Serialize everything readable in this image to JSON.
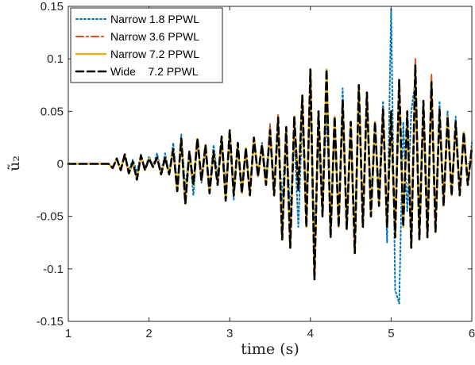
{
  "chart_data": {
    "type": "line",
    "xlabel": "time (s)",
    "ylabel": "ũ₂",
    "xlim": [
      1,
      6
    ],
    "ylim": [
      -0.15,
      0.15
    ],
    "x_ticks": [
      1,
      2,
      3,
      4,
      5,
      6
    ],
    "y_ticks": [
      -0.15,
      -0.1,
      -0.05,
      0,
      0.05,
      0.1,
      0.15
    ],
    "x_tick_labels": [
      "1",
      "2",
      "3",
      "4",
      "5",
      "6"
    ],
    "y_tick_labels": [
      "-0.15",
      "-0.1",
      "-0.05",
      "0",
      "0.05",
      "0.1",
      "0.15"
    ],
    "grid": false,
    "legend_position": "top-left",
    "series": [
      {
        "name": "Narrow 1.8 PPWL",
        "color": "#0072BD",
        "style": "dotted",
        "x": [
          1.0,
          1.5,
          1.55,
          1.6,
          1.65,
          1.7,
          1.75,
          1.8,
          1.85,
          1.9,
          1.95,
          2.0,
          2.05,
          2.1,
          2.15,
          2.2,
          2.25,
          2.3,
          2.35,
          2.4,
          2.45,
          2.5,
          2.55,
          2.6,
          2.65,
          2.7,
          2.75,
          2.8,
          2.85,
          2.9,
          2.95,
          3.0,
          3.05,
          3.1,
          3.15,
          3.2,
          3.25,
          3.3,
          3.35,
          3.4,
          3.45,
          3.5,
          3.55,
          3.6,
          3.65,
          3.7,
          3.75,
          3.8,
          3.85,
          3.9,
          3.95,
          4.0,
          4.05,
          4.1,
          4.15,
          4.2,
          4.25,
          4.3,
          4.35,
          4.4,
          4.45,
          4.5,
          4.55,
          4.6,
          4.65,
          4.7,
          4.75,
          4.8,
          4.85,
          4.9,
          4.95,
          5.0,
          5.05,
          5.1,
          5.15,
          5.2,
          5.25,
          5.3,
          5.35,
          5.4,
          5.45,
          5.5,
          5.55,
          5.6,
          5.65,
          5.7,
          5.75,
          5.8,
          5.85,
          5.9,
          5.95,
          6.0
        ],
        "y": [
          0.0,
          0.0,
          -0.003,
          0.004,
          -0.005,
          0.008,
          -0.006,
          0.004,
          -0.008,
          0.009,
          -0.005,
          0.007,
          -0.002,
          0.01,
          -0.008,
          0.01,
          -0.01,
          0.02,
          -0.02,
          0.028,
          -0.024,
          0.012,
          -0.03,
          0.022,
          -0.018,
          0.012,
          -0.022,
          0.018,
          -0.012,
          0.026,
          -0.02,
          0.024,
          -0.034,
          0.018,
          -0.022,
          0.014,
          -0.03,
          0.022,
          -0.01,
          0.02,
          -0.012,
          0.036,
          -0.022,
          0.028,
          -0.035,
          0.032,
          -0.048,
          0.03,
          -0.06,
          0.045,
          -0.03,
          0.06,
          -0.068,
          0.022,
          -0.04,
          0.05,
          -0.06,
          0.03,
          -0.05,
          0.072,
          -0.055,
          0.028,
          -0.065,
          0.07,
          -0.045,
          0.055,
          -0.03,
          0.03,
          -0.025,
          0.06,
          -0.075,
          0.148,
          -0.12,
          -0.133,
          0.04,
          -0.045,
          0.05,
          0.08,
          -0.07,
          0.06,
          -0.05,
          0.07,
          -0.06,
          0.06,
          -0.04,
          0.05,
          -0.03,
          0.045,
          -0.025,
          0.03,
          -0.02,
          0.02
        ]
      },
      {
        "name": "Narrow 3.6 PPWL",
        "color": "#D95319",
        "style": "dashdot",
        "x": [
          1.0,
          1.5,
          1.55,
          1.6,
          1.65,
          1.7,
          1.75,
          1.8,
          1.85,
          1.9,
          1.95,
          2.0,
          2.05,
          2.1,
          2.15,
          2.2,
          2.25,
          2.3,
          2.35,
          2.4,
          2.45,
          2.5,
          2.55,
          2.6,
          2.65,
          2.7,
          2.75,
          2.8,
          2.85,
          2.9,
          2.95,
          3.0,
          3.05,
          3.1,
          3.15,
          3.2,
          3.25,
          3.3,
          3.35,
          3.4,
          3.45,
          3.5,
          3.55,
          3.6,
          3.65,
          3.7,
          3.75,
          3.8,
          3.85,
          3.9,
          3.95,
          4.0,
          4.05,
          4.1,
          4.15,
          4.2,
          4.25,
          4.3,
          4.35,
          4.4,
          4.45,
          4.5,
          4.55,
          4.6,
          4.65,
          4.7,
          4.75,
          4.8,
          4.85,
          4.9,
          4.95,
          5.0,
          5.05,
          5.1,
          5.15,
          5.2,
          5.25,
          5.3,
          5.35,
          5.4,
          5.45,
          5.5,
          5.55,
          5.6,
          5.65,
          5.7,
          5.75,
          5.8,
          5.85,
          5.9,
          5.95,
          6.0
        ],
        "y": [
          0.0,
          0.0,
          -0.004,
          0.005,
          -0.006,
          0.009,
          -0.009,
          0.002,
          -0.014,
          0.008,
          -0.006,
          0.005,
          -0.003,
          0.006,
          -0.01,
          0.006,
          -0.01,
          0.014,
          -0.026,
          0.024,
          -0.034,
          0.012,
          -0.02,
          0.024,
          -0.016,
          0.018,
          -0.028,
          0.012,
          -0.02,
          0.026,
          -0.035,
          0.032,
          -0.03,
          0.02,
          -0.028,
          0.015,
          -0.03,
          0.025,
          -0.012,
          0.018,
          -0.02,
          0.038,
          -0.03,
          0.048,
          -0.072,
          0.035,
          -0.08,
          0.045,
          -0.025,
          0.065,
          -0.06,
          0.088,
          -0.11,
          0.05,
          -0.05,
          0.085,
          -0.07,
          0.045,
          -0.06,
          0.06,
          -0.062,
          0.04,
          -0.085,
          0.075,
          -0.06,
          0.068,
          -0.05,
          0.04,
          -0.04,
          0.052,
          -0.06,
          0.05,
          -0.07,
          0.08,
          -0.06,
          0.05,
          -0.08,
          0.1,
          -0.072,
          0.06,
          -0.07,
          0.085,
          -0.065,
          0.052,
          -0.04,
          0.045,
          -0.03,
          0.04,
          -0.03,
          0.03,
          -0.02,
          0.015
        ]
      },
      {
        "name": "Narrow 7.2 PPWL",
        "color": "#EDB120",
        "style": "solid",
        "x": [
          1.0,
          1.5,
          1.55,
          1.6,
          1.65,
          1.7,
          1.75,
          1.8,
          1.85,
          1.9,
          1.95,
          2.0,
          2.05,
          2.1,
          2.15,
          2.2,
          2.25,
          2.3,
          2.35,
          2.4,
          2.45,
          2.5,
          2.55,
          2.6,
          2.65,
          2.7,
          2.75,
          2.8,
          2.85,
          2.9,
          2.95,
          3.0,
          3.05,
          3.1,
          3.15,
          3.2,
          3.25,
          3.3,
          3.35,
          3.4,
          3.45,
          3.5,
          3.55,
          3.6,
          3.65,
          3.7,
          3.75,
          3.8,
          3.85,
          3.9,
          3.95,
          4.0,
          4.05,
          4.1,
          4.15,
          4.2,
          4.25,
          4.3,
          4.35,
          4.4,
          4.45,
          4.5,
          4.55,
          4.6,
          4.65,
          4.7,
          4.75,
          4.8,
          4.85,
          4.9,
          4.95,
          5.0,
          5.05,
          5.1,
          5.15,
          5.2,
          5.25,
          5.3,
          5.35,
          5.4,
          5.45,
          5.5,
          5.55,
          5.6,
          5.65,
          5.7,
          5.75,
          5.8,
          5.85,
          5.9,
          5.95,
          6.0
        ],
        "y": [
          0.0,
          0.0,
          -0.004,
          0.005,
          -0.006,
          0.009,
          -0.009,
          0.002,
          -0.015,
          0.008,
          -0.006,
          0.005,
          -0.003,
          0.006,
          -0.01,
          0.006,
          -0.01,
          0.014,
          -0.026,
          0.024,
          -0.038,
          0.012,
          -0.02,
          0.024,
          -0.016,
          0.018,
          -0.028,
          0.012,
          -0.02,
          0.026,
          -0.035,
          0.032,
          -0.03,
          0.02,
          -0.028,
          0.015,
          -0.03,
          0.025,
          -0.012,
          0.018,
          -0.02,
          0.032,
          -0.03,
          0.044,
          -0.072,
          0.035,
          -0.08,
          0.045,
          -0.025,
          0.065,
          -0.06,
          0.09,
          -0.11,
          0.05,
          -0.05,
          0.09,
          -0.07,
          0.045,
          -0.06,
          0.06,
          -0.062,
          0.04,
          -0.085,
          0.075,
          -0.06,
          0.068,
          -0.05,
          0.04,
          -0.04,
          0.052,
          -0.06,
          0.05,
          -0.07,
          0.08,
          -0.06,
          0.05,
          -0.08,
          0.094,
          -0.072,
          0.06,
          -0.07,
          0.078,
          -0.065,
          0.052,
          -0.04,
          0.045,
          -0.03,
          0.04,
          -0.03,
          0.03,
          -0.02,
          0.015
        ]
      },
      {
        "name": "Wide    7.2 PPWL",
        "color": "#000000",
        "style": "dashed",
        "x": [
          1.0,
          1.5,
          1.55,
          1.6,
          1.65,
          1.7,
          1.75,
          1.8,
          1.85,
          1.9,
          1.95,
          2.0,
          2.05,
          2.1,
          2.15,
          2.2,
          2.25,
          2.3,
          2.35,
          2.4,
          2.45,
          2.5,
          2.55,
          2.6,
          2.65,
          2.7,
          2.75,
          2.8,
          2.85,
          2.9,
          2.95,
          3.0,
          3.05,
          3.1,
          3.15,
          3.2,
          3.25,
          3.3,
          3.35,
          3.4,
          3.45,
          3.5,
          3.55,
          3.6,
          3.65,
          3.7,
          3.75,
          3.8,
          3.85,
          3.9,
          3.95,
          4.0,
          4.05,
          4.1,
          4.15,
          4.2,
          4.25,
          4.3,
          4.35,
          4.4,
          4.45,
          4.5,
          4.55,
          4.6,
          4.65,
          4.7,
          4.75,
          4.8,
          4.85,
          4.9,
          4.95,
          5.0,
          5.05,
          5.1,
          5.15,
          5.2,
          5.25,
          5.3,
          5.35,
          5.4,
          5.45,
          5.5,
          5.55,
          5.6,
          5.65,
          5.7,
          5.75,
          5.8,
          5.85,
          5.9,
          5.95,
          6.0
        ],
        "y": [
          0.0,
          0.0,
          -0.004,
          0.005,
          -0.006,
          0.009,
          -0.009,
          0.002,
          -0.015,
          0.008,
          -0.006,
          0.005,
          -0.003,
          0.006,
          -0.01,
          0.006,
          -0.01,
          0.014,
          -0.026,
          0.024,
          -0.038,
          0.012,
          -0.02,
          0.024,
          -0.016,
          0.018,
          -0.028,
          0.012,
          -0.02,
          0.026,
          -0.035,
          0.032,
          -0.03,
          0.02,
          -0.028,
          0.015,
          -0.03,
          0.025,
          -0.012,
          0.018,
          -0.02,
          0.032,
          -0.03,
          0.044,
          -0.072,
          0.035,
          -0.08,
          0.045,
          -0.025,
          0.065,
          -0.06,
          0.09,
          -0.11,
          0.05,
          -0.05,
          0.09,
          -0.07,
          0.045,
          -0.06,
          0.06,
          -0.062,
          0.04,
          -0.085,
          0.075,
          -0.06,
          0.068,
          -0.05,
          0.04,
          -0.04,
          0.052,
          -0.06,
          0.05,
          -0.07,
          0.08,
          -0.06,
          0.05,
          -0.08,
          0.094,
          -0.072,
          0.06,
          -0.07,
          0.078,
          -0.065,
          0.052,
          -0.04,
          0.045,
          -0.03,
          0.04,
          -0.03,
          0.03,
          -0.02,
          0.015
        ]
      }
    ]
  }
}
